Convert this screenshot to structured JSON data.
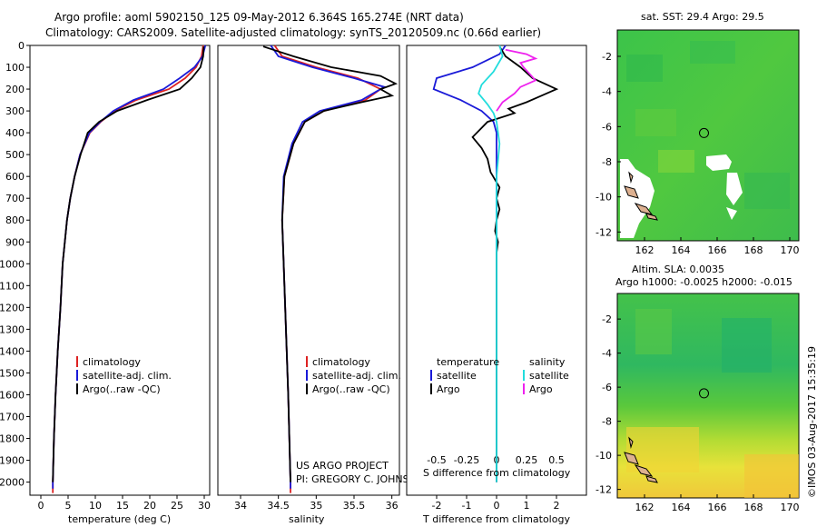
{
  "titles": {
    "line1": "Argo profile: aoml 5902150_125 09-May-2012 6.364S 165.274E (NRT data)",
    "line2": "Climatology: CARS2009. Satellite-adjusted climatology: synTS_20120509.nc (0.66d earlier)",
    "sst_title": "sat. SST: 29.4 Argo: 29.5",
    "sla_title1": "Altim. SLA: 0.0035",
    "sla_title2": "Argo h1000: -0.0025 h2000: -0.015",
    "stamp": "©IMOS 03-Aug-2017 15:35:19"
  },
  "credit": {
    "line1": "US ARGO PROJECT",
    "line2": "PI: GREGORY C. JOHNSON"
  },
  "colors": {
    "climatology": "#dd2222",
    "satellite": "#1a1ad8",
    "argo": "#000000",
    "sal_sat": "#22dddd",
    "sal_argo": "#ee22ee"
  },
  "chart_data": [
    {
      "type": "line",
      "panel": "temperature",
      "xlabel": "temperature (deg C)",
      "ylabel": "",
      "xlim": [
        -2,
        31
      ],
      "ylim": [
        2060,
        0
      ],
      "xticks": [
        0,
        5,
        10,
        15,
        20,
        25,
        30
      ],
      "yticks": [
        0,
        100,
        200,
        300,
        400,
        500,
        600,
        700,
        800,
        900,
        1000,
        1100,
        1200,
        1300,
        1400,
        1500,
        1600,
        1700,
        1800,
        1900,
        2000
      ],
      "legend": [
        "climatology",
        "satellite-adj. clim.",
        "Argo(..raw -QC)"
      ],
      "series": [
        {
          "name": "climatology",
          "color": "#dd2222",
          "points": [
            [
              29.8,
              0
            ],
            [
              29.5,
              50
            ],
            [
              28.5,
              100
            ],
            [
              26.5,
              150
            ],
            [
              23.5,
              200
            ],
            [
              17.5,
              250
            ],
            [
              13.5,
              300
            ],
            [
              11,
              350
            ],
            [
              9,
              400
            ],
            [
              7.2,
              500
            ],
            [
              6.2,
              600
            ],
            [
              5.4,
              700
            ],
            [
              4.8,
              800
            ],
            [
              4.4,
              900
            ],
            [
              4.0,
              1000
            ],
            [
              3.6,
              1200
            ],
            [
              3.1,
              1400
            ],
            [
              2.7,
              1600
            ],
            [
              2.4,
              1800
            ],
            [
              2.2,
              2000
            ],
            [
              2.2,
              2050
            ]
          ]
        },
        {
          "name": "satellite-adj. clim.",
          "color": "#1a1ad8",
          "points": [
            [
              30.2,
              0
            ],
            [
              29.7,
              50
            ],
            [
              28.2,
              100
            ],
            [
              25.5,
              150
            ],
            [
              22.5,
              200
            ],
            [
              17,
              250
            ],
            [
              13.3,
              300
            ],
            [
              10.9,
              350
            ],
            [
              8.9,
              400
            ],
            [
              7.2,
              500
            ],
            [
              6.2,
              600
            ],
            [
              5.4,
              700
            ],
            [
              4.8,
              800
            ],
            [
              4.4,
              900
            ],
            [
              4.0,
              1000
            ],
            [
              3.6,
              1200
            ],
            [
              3.1,
              1400
            ],
            [
              2.7,
              1600
            ],
            [
              2.4,
              1800
            ],
            [
              2.2,
              2000
            ],
            [
              2.2,
              2030
            ]
          ]
        },
        {
          "name": "Argo(..raw -QC)",
          "color": "#000000",
          "points": [
            [
              29.9,
              5
            ],
            [
              29.8,
              50
            ],
            [
              29.3,
              100
            ],
            [
              27.7,
              150
            ],
            [
              25.5,
              200
            ],
            [
              19.5,
              250
            ],
            [
              14,
              300
            ],
            [
              10.7,
              350
            ],
            [
              8.6,
              400
            ],
            [
              7.3,
              500
            ],
            [
              6.2,
              600
            ],
            [
              5.4,
              700
            ],
            [
              4.8,
              800
            ],
            [
              4.4,
              900
            ],
            [
              4.0,
              1000
            ],
            [
              3.6,
              1200
            ],
            [
              3.1,
              1400
            ],
            [
              2.7,
              1600
            ],
            [
              2.4,
              1800
            ],
            [
              2.2,
              2000
            ]
          ]
        }
      ]
    },
    {
      "type": "line",
      "panel": "salinity",
      "xlabel": "salinity",
      "ylabel": "",
      "xlim": [
        33.7,
        36.1
      ],
      "ylim": [
        2060,
        0
      ],
      "xticks": [
        34,
        34.5,
        35,
        35.5,
        36
      ],
      "xtick_labels": [
        "34",
        "34.5",
        "35",
        "35.5",
        "36"
      ],
      "legend": [
        "climatology",
        "satellite-adj. clim.",
        "Argo(..raw -QC)"
      ],
      "series": [
        {
          "name": "climatology",
          "color": "#dd2222",
          "points": [
            [
              34.45,
              0
            ],
            [
              34.55,
              50
            ],
            [
              35.0,
              100
            ],
            [
              35.55,
              150
            ],
            [
              35.85,
              200
            ],
            [
              35.65,
              250
            ],
            [
              35.1,
              300
            ],
            [
              34.85,
              350
            ],
            [
              34.7,
              450
            ],
            [
              34.58,
              600
            ],
            [
              34.55,
              800
            ],
            [
              34.57,
              1000
            ],
            [
              34.6,
              1300
            ],
            [
              34.63,
              1600
            ],
            [
              34.66,
              2000
            ],
            [
              34.66,
              2050
            ]
          ]
        },
        {
          "name": "satellite-adj. clim.",
          "color": "#1a1ad8",
          "points": [
            [
              34.4,
              0
            ],
            [
              34.5,
              50
            ],
            [
              34.95,
              100
            ],
            [
              35.5,
              150
            ],
            [
              35.9,
              190
            ],
            [
              35.6,
              250
            ],
            [
              35.05,
              300
            ],
            [
              34.82,
              350
            ],
            [
              34.68,
              450
            ],
            [
              34.57,
              600
            ],
            [
              34.55,
              800
            ],
            [
              34.57,
              1000
            ],
            [
              34.6,
              1300
            ],
            [
              34.63,
              1600
            ],
            [
              34.66,
              2000
            ],
            [
              34.66,
              2030
            ]
          ]
        },
        {
          "name": "Argo(..raw -QC)",
          "color": "#000000",
          "points": [
            [
              34.3,
              5
            ],
            [
              34.7,
              50
            ],
            [
              35.2,
              100
            ],
            [
              35.85,
              140
            ],
            [
              36.05,
              175
            ],
            [
              35.85,
              200
            ],
            [
              36.0,
              230
            ],
            [
              35.6,
              260
            ],
            [
              35.1,
              300
            ],
            [
              34.85,
              350
            ],
            [
              34.7,
              450
            ],
            [
              34.58,
              600
            ],
            [
              34.55,
              800
            ],
            [
              34.57,
              1000
            ],
            [
              34.6,
              1300
            ],
            [
              34.63,
              1600
            ],
            [
              34.66,
              2000
            ]
          ]
        }
      ]
    },
    {
      "type": "line",
      "panel": "difference",
      "xlabel": "T difference from climatology",
      "xlabel_top": "S difference from climatology",
      "xlim": [
        -3,
        3
      ],
      "ylim": [
        2060,
        0
      ],
      "xticks": [
        -2,
        -1,
        0,
        1,
        2
      ],
      "xtick_labels": [
        "-2",
        "-1",
        "0",
        "1",
        "2"
      ],
      "sal_scale": 4,
      "sal_ticks": [
        -0.5,
        -0.25,
        0,
        0.25,
        0.5
      ],
      "sal_tick_labels": [
        "-0.5",
        "-0.25",
        "0",
        "0.25",
        "0.5"
      ],
      "legend": {
        "temperature": "temperature",
        "salinity": "salinity",
        "satellite": "satellite",
        "argo": "Argo"
      },
      "series": [
        {
          "name": "temperature satellite",
          "color": "#1a1ad8",
          "points": [
            [
              0.3,
              0
            ],
            [
              0.1,
              40
            ],
            [
              -0.8,
              100
            ],
            [
              -2.0,
              150
            ],
            [
              -2.1,
              200
            ],
            [
              -1.2,
              250
            ],
            [
              -0.5,
              300
            ],
            [
              -0.1,
              350
            ],
            [
              0,
              400
            ],
            [
              0,
              600
            ],
            [
              0,
              1000
            ],
            [
              0,
              1500
            ],
            [
              0,
              2000
            ]
          ]
        },
        {
          "name": "temperature Argo",
          "color": "#000000",
          "points": [
            [
              0.1,
              5
            ],
            [
              0.3,
              50
            ],
            [
              0.8,
              100
            ],
            [
              1.2,
              150
            ],
            [
              2.0,
              200
            ],
            [
              1.5,
              230
            ],
            [
              1.0,
              260
            ],
            [
              0.4,
              290
            ],
            [
              0.6,
              310
            ],
            [
              -0.3,
              350
            ],
            [
              -0.8,
              420
            ],
            [
              -0.5,
              470
            ],
            [
              -0.3,
              520
            ],
            [
              -0.2,
              580
            ],
            [
              0.1,
              650
            ],
            [
              0.0,
              700
            ],
            [
              0.1,
              750
            ],
            [
              0.0,
              800
            ],
            [
              -0.05,
              850
            ],
            [
              0.05,
              900
            ],
            [
              0.0,
              950
            ],
            [
              0.0,
              1000
            ],
            [
              0.0,
              1300
            ],
            [
              0.0,
              1600
            ],
            [
              0.0,
              1900
            ],
            [
              0.0,
              2000
            ]
          ]
        },
        {
          "name": "salinity satellite",
          "color": "#22dddd",
          "points": [
            [
              0.1,
              0
            ],
            [
              0.2,
              50
            ],
            [
              -0.1,
              120
            ],
            [
              -0.5,
              180
            ],
            [
              -0.6,
              220
            ],
            [
              -0.3,
              270
            ],
            [
              -0.1,
              310
            ],
            [
              0.0,
              350
            ],
            [
              0.1,
              450
            ],
            [
              0.0,
              600
            ],
            [
              0.0,
              1000
            ],
            [
              0.0,
              1500
            ],
            [
              0.0,
              2000
            ]
          ]
        },
        {
          "name": "salinity Argo",
          "color": "#ee22ee",
          "points": [
            [
              0.3,
              20
            ],
            [
              1.0,
              40
            ],
            [
              1.3,
              60
            ],
            [
              0.8,
              80
            ],
            [
              0.9,
              100
            ],
            [
              1.1,
              130
            ],
            [
              1.3,
              160
            ],
            [
              0.8,
              190
            ],
            [
              0.6,
              220
            ],
            [
              0.2,
              260
            ],
            [
              0.0,
              300
            ]
          ]
        }
      ]
    },
    {
      "type": "heatmap",
      "panel": "sst_map",
      "xticks": [
        162,
        164,
        166,
        168,
        170
      ],
      "yticks": [
        -2,
        -4,
        -6,
        -8,
        -10,
        -12
      ],
      "xlim": [
        160.5,
        170.5
      ],
      "ylim": [
        -12.5,
        -0.5
      ],
      "float_position": [
        165.274,
        -6.364
      ]
    },
    {
      "type": "heatmap",
      "panel": "sla_map",
      "xticks": [
        162,
        164,
        166,
        168,
        170
      ],
      "yticks": [
        -2,
        -4,
        -6,
        -8,
        -10,
        -12
      ],
      "xlim": [
        160.5,
        170.5
      ],
      "ylim": [
        -12.5,
        -0.5
      ],
      "float_position": [
        165.274,
        -6.364
      ]
    }
  ]
}
